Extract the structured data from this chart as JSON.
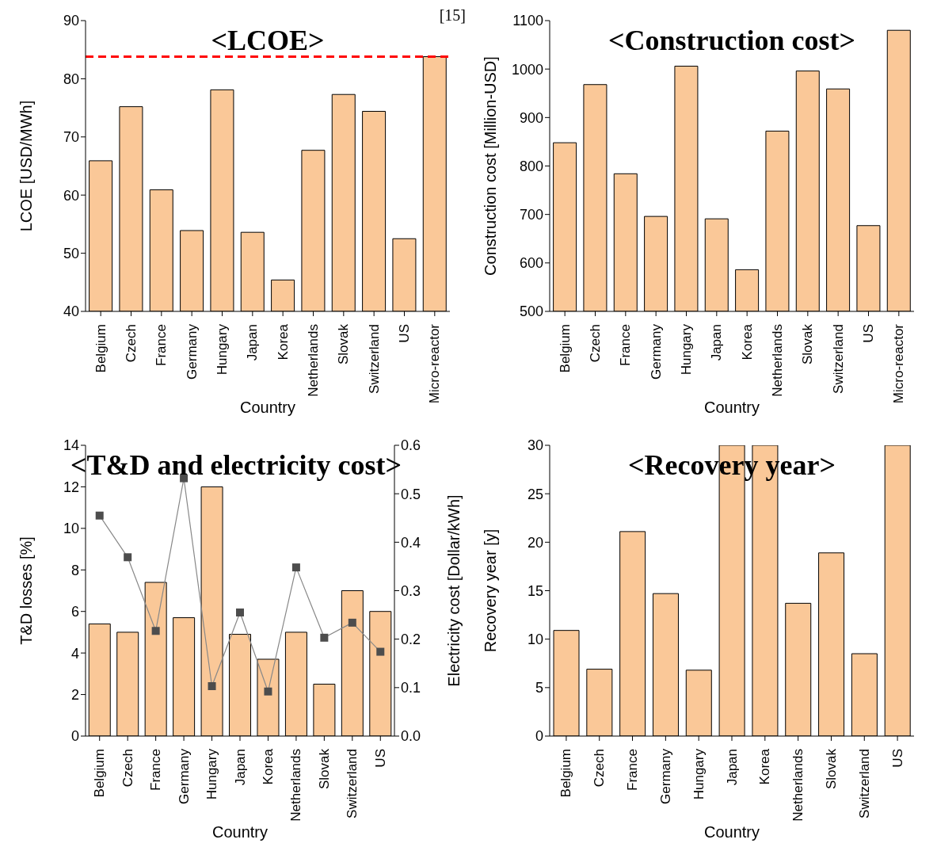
{
  "chart_data": [
    {
      "type": "bar",
      "title": "<LCOE>",
      "xlabel": "Country",
      "ylabel": "LCOE [USD/MWh]",
      "categories": [
        "Belgium",
        "Czech",
        "France",
        "Germany",
        "Hungary",
        "Japan",
        "Korea",
        "Netherlands",
        "Slovak",
        "Switzerland",
        "US",
        "Micro-reactor"
      ],
      "values": [
        65.9,
        75.2,
        60.9,
        53.9,
        78.1,
        53.6,
        45.4,
        67.7,
        77.3,
        74.4,
        52.5,
        83.8
      ],
      "color": "#fac898",
      "ylim": [
        40,
        90
      ],
      "yticks": [
        40,
        50,
        60,
        70,
        80,
        90
      ],
      "ref_lines": [
        {
          "axis": "y",
          "value": 83.8,
          "color": "#ff0000",
          "line_style": "dashed"
        }
      ],
      "annotations": [
        "[15]"
      ]
    },
    {
      "type": "bar",
      "title": "<Construction cost>",
      "xlabel": "Country",
      "ylabel": "Construction cost [Million-USD]",
      "categories": [
        "Belgium",
        "Czech",
        "France",
        "Germany",
        "Hungary",
        "Japan",
        "Korea",
        "Netherlands",
        "Slovak",
        "Switzerland",
        "US",
        "Micro-reactor"
      ],
      "values": [
        848,
        968,
        784,
        696,
        1006,
        691,
        586,
        872,
        996,
        959,
        677,
        1080
      ],
      "color": "#fac898",
      "ylim": [
        500,
        1100
      ],
      "yticks": [
        500,
        600,
        700,
        800,
        900,
        1000,
        1100
      ]
    },
    {
      "type": "bar",
      "title": "<T&D and electricity cost>",
      "xlabel": "Country",
      "ylabel": "T&D losses [%]",
      "y2label": "Electricity cost [Dollar/kWh]",
      "categories": [
        "Belgium",
        "Czech",
        "France",
        "Germany",
        "Hungary",
        "Japan",
        "Korea",
        "Netherlands",
        "Slovak",
        "Switzerland",
        "US"
      ],
      "ylim": [
        0,
        14
      ],
      "yticks": [
        0,
        2,
        4,
        6,
        8,
        10,
        12,
        14
      ],
      "y2lim": [
        0,
        0.6
      ],
      "y2ticks": [
        {
          "value": 0,
          "label": "0.0"
        },
        0.1,
        0.2,
        0.3,
        0.4,
        0.5,
        0.6
      ],
      "marker": "square",
      "series": [
        {
          "color": "#fac898",
          "values": [
            5.4,
            5.0,
            7.4,
            5.7,
            12.0,
            4.9,
            3.7,
            5.0,
            2.5,
            7.0,
            6.0
          ]
        },
        {
          "type": "line",
          "axis": "y2",
          "color": "#4d4d4d",
          "values": [
            0.455,
            0.369,
            0.217,
            0.532,
            0.103,
            0.255,
            0.092,
            0.348,
            0.203,
            0.234,
            0.174
          ]
        }
      ]
    },
    {
      "type": "bar",
      "title": "<Recovery year>",
      "xlabel": "Country",
      "ylabel": "Recovery year [y]",
      "categories": [
        "Belgium",
        "Czech",
        "France",
        "Germany",
        "Hungary",
        "Japan",
        "Korea",
        "Netherlands",
        "Slovak",
        "Switzerland",
        "US"
      ],
      "values": [
        10.9,
        6.9,
        21.1,
        14.7,
        6.8,
        30,
        30,
        13.7,
        18.9,
        8.5,
        30
      ],
      "color": "#fac898",
      "ylim": [
        0,
        30
      ],
      "yticks": [
        0,
        5,
        10,
        15,
        20,
        25,
        30
      ]
    }
  ]
}
